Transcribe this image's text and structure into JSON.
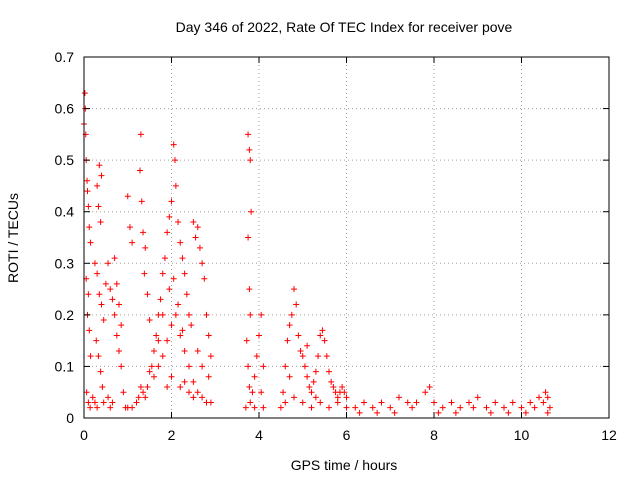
{
  "chart_data": {
    "type": "scatter",
    "title": "Day 346 of 2022, Rate Of TEC Index for receiver pove",
    "xlabel": "GPS time / hours",
    "ylabel": "ROTI / TECUs",
    "xlim": [
      0,
      12
    ],
    "ylim": [
      0,
      0.7
    ],
    "xticks": [
      0,
      2,
      4,
      6,
      8,
      10,
      12
    ],
    "yticks": [
      0,
      0.1,
      0.2,
      0.3,
      0.4,
      0.5,
      0.6,
      0.7
    ],
    "xtick_labels": [
      "0",
      "2",
      "4",
      "6",
      "8",
      "10",
      "12"
    ],
    "ytick_labels": [
      "0",
      "0.1",
      "0.2",
      "0.3",
      "0.4",
      "0.5",
      "0.6",
      "0.7"
    ],
    "grid": true,
    "marker": "+",
    "color": "#ff0000",
    "series": [
      {
        "points": [
          [
            0.0,
            0.57
          ],
          [
            0.02,
            0.63
          ],
          [
            0.03,
            0.6
          ],
          [
            0.04,
            0.55
          ],
          [
            0.05,
            0.5
          ],
          [
            0.07,
            0.46
          ],
          [
            0.08,
            0.44
          ],
          [
            0.1,
            0.41
          ],
          [
            0.12,
            0.37
          ],
          [
            0.15,
            0.34
          ],
          [
            0.05,
            0.27
          ],
          [
            0.1,
            0.24
          ],
          [
            0.08,
            0.2
          ],
          [
            0.12,
            0.17
          ],
          [
            0.15,
            0.12
          ],
          [
            0.06,
            0.05
          ],
          [
            0.1,
            0.03
          ],
          [
            0.14,
            0.02
          ],
          [
            0.2,
            0.04
          ],
          [
            0.25,
            0.03
          ],
          [
            0.3,
            0.45
          ],
          [
            0.35,
            0.49
          ],
          [
            0.4,
            0.47
          ],
          [
            0.33,
            0.41
          ],
          [
            0.38,
            0.38
          ],
          [
            0.25,
            0.3
          ],
          [
            0.3,
            0.28
          ],
          [
            0.35,
            0.24
          ],
          [
            0.4,
            0.22
          ],
          [
            0.45,
            0.19
          ],
          [
            0.28,
            0.15
          ],
          [
            0.33,
            0.12
          ],
          [
            0.38,
            0.09
          ],
          [
            0.42,
            0.06
          ],
          [
            0.3,
            0.02
          ],
          [
            0.45,
            0.03
          ],
          [
            0.5,
            0.26
          ],
          [
            0.55,
            0.3
          ],
          [
            0.6,
            0.25
          ],
          [
            0.65,
            0.23
          ],
          [
            0.7,
            0.2
          ],
          [
            0.75,
            0.16
          ],
          [
            0.8,
            0.13
          ],
          [
            0.85,
            0.1
          ],
          [
            0.9,
            0.05
          ],
          [
            0.95,
            0.02
          ],
          [
            0.55,
            0.04
          ],
          [
            0.65,
            0.03
          ],
          [
            0.7,
            0.31
          ],
          [
            0.75,
            0.26
          ],
          [
            0.8,
            0.22
          ],
          [
            0.85,
            0.18
          ],
          [
            0.6,
            0.02
          ],
          [
            1.0,
            0.43
          ],
          [
            1.05,
            0.37
          ],
          [
            1.1,
            0.34
          ],
          [
            1.0,
            0.02
          ],
          [
            1.1,
            0.02
          ],
          [
            1.2,
            0.03
          ],
          [
            1.25,
            0.04
          ],
          [
            1.3,
            0.55
          ],
          [
            1.28,
            0.48
          ],
          [
            1.32,
            0.42
          ],
          [
            1.35,
            0.36
          ],
          [
            1.4,
            0.33
          ],
          [
            1.38,
            0.28
          ],
          [
            1.45,
            0.24
          ],
          [
            1.5,
            0.19
          ],
          [
            1.3,
            0.06
          ],
          [
            1.35,
            0.05
          ],
          [
            1.4,
            0.04
          ],
          [
            1.45,
            0.06
          ],
          [
            1.5,
            0.09
          ],
          [
            1.55,
            0.1
          ],
          [
            1.6,
            0.13
          ],
          [
            1.65,
            0.16
          ],
          [
            1.7,
            0.2
          ],
          [
            1.75,
            0.23
          ],
          [
            1.8,
            0.28
          ],
          [
            1.85,
            0.31
          ],
          [
            1.9,
            0.36
          ],
          [
            1.95,
            0.39
          ],
          [
            2.0,
            0.42
          ],
          [
            2.05,
            0.53
          ],
          [
            2.08,
            0.5
          ],
          [
            2.1,
            0.45
          ],
          [
            2.15,
            0.38
          ],
          [
            2.2,
            0.34
          ],
          [
            2.25,
            0.31
          ],
          [
            2.3,
            0.28
          ],
          [
            2.35,
            0.24
          ],
          [
            2.4,
            0.2
          ],
          [
            2.45,
            0.18
          ],
          [
            1.6,
            0.08
          ],
          [
            1.7,
            0.1
          ],
          [
            1.8,
            0.12
          ],
          [
            1.9,
            0.15
          ],
          [
            2.0,
            0.18
          ],
          [
            2.1,
            0.2
          ],
          [
            2.2,
            0.16
          ],
          [
            2.3,
            0.13
          ],
          [
            2.4,
            0.1
          ],
          [
            2.5,
            0.07
          ],
          [
            2.6,
            0.05
          ],
          [
            2.7,
            0.04
          ],
          [
            2.8,
            0.03
          ],
          [
            2.9,
            0.03
          ],
          [
            1.7,
            0.15
          ],
          [
            1.8,
            0.2
          ],
          [
            1.95,
            0.25
          ],
          [
            2.05,
            0.27
          ],
          [
            2.15,
            0.22
          ],
          [
            2.25,
            0.17
          ],
          [
            2.5,
            0.38
          ],
          [
            2.55,
            0.35
          ],
          [
            2.6,
            0.37
          ],
          [
            2.65,
            0.33
          ],
          [
            2.7,
            0.3
          ],
          [
            2.75,
            0.27
          ],
          [
            2.8,
            0.2
          ],
          [
            2.85,
            0.16
          ],
          [
            2.9,
            0.12
          ],
          [
            2.85,
            0.08
          ],
          [
            2.6,
            0.13
          ],
          [
            2.7,
            0.1
          ],
          [
            2.3,
            0.07
          ],
          [
            2.4,
            0.05
          ],
          [
            2.5,
            0.04
          ],
          [
            2.2,
            0.06
          ],
          [
            2.0,
            0.08
          ],
          [
            1.9,
            0.06
          ],
          [
            3.75,
            0.55
          ],
          [
            3.78,
            0.52
          ],
          [
            3.8,
            0.5
          ],
          [
            3.82,
            0.4
          ],
          [
            3.75,
            0.35
          ],
          [
            3.78,
            0.25
          ],
          [
            3.8,
            0.2
          ],
          [
            3.72,
            0.15
          ],
          [
            3.75,
            0.1
          ],
          [
            3.78,
            0.06
          ],
          [
            3.8,
            0.03
          ],
          [
            3.85,
            0.05
          ],
          [
            3.9,
            0.08
          ],
          [
            3.95,
            0.12
          ],
          [
            4.0,
            0.16
          ],
          [
            4.05,
            0.2
          ],
          [
            4.1,
            0.1
          ],
          [
            4.05,
            0.05
          ],
          [
            4.1,
            0.02
          ],
          [
            3.9,
            0.02
          ],
          [
            3.7,
            0.02
          ],
          [
            4.5,
            0.02
          ],
          [
            4.55,
            0.05
          ],
          [
            4.6,
            0.1
          ],
          [
            4.65,
            0.15
          ],
          [
            4.7,
            0.18
          ],
          [
            4.75,
            0.2
          ],
          [
            4.8,
            0.25
          ],
          [
            4.85,
            0.22
          ],
          [
            4.9,
            0.16
          ],
          [
            4.95,
            0.13
          ],
          [
            5.0,
            0.12
          ],
          [
            5.05,
            0.1
          ],
          [
            5.1,
            0.08
          ],
          [
            5.15,
            0.06
          ],
          [
            5.2,
            0.05
          ],
          [
            5.25,
            0.07
          ],
          [
            5.3,
            0.09
          ],
          [
            5.35,
            0.12
          ],
          [
            5.4,
            0.16
          ],
          [
            5.45,
            0.17
          ],
          [
            5.5,
            0.15
          ],
          [
            5.55,
            0.12
          ],
          [
            5.6,
            0.09
          ],
          [
            5.65,
            0.07
          ],
          [
            5.7,
            0.06
          ],
          [
            5.75,
            0.05
          ],
          [
            5.8,
            0.04
          ],
          [
            5.85,
            0.05
          ],
          [
            5.9,
            0.06
          ],
          [
            5.95,
            0.05
          ],
          [
            6.0,
            0.04
          ],
          [
            4.6,
            0.03
          ],
          [
            4.8,
            0.04
          ],
          [
            5.0,
            0.03
          ],
          [
            5.2,
            0.02
          ],
          [
            5.4,
            0.03
          ],
          [
            5.6,
            0.02
          ],
          [
            5.8,
            0.03
          ],
          [
            6.0,
            0.02
          ],
          [
            4.7,
            0.08
          ],
          [
            5.1,
            0.14
          ],
          [
            5.3,
            0.04
          ],
          [
            6.2,
            0.02
          ],
          [
            6.4,
            0.03
          ],
          [
            6.6,
            0.02
          ],
          [
            6.8,
            0.03
          ],
          [
            7.0,
            0.02
          ],
          [
            7.2,
            0.04
          ],
          [
            7.4,
            0.03
          ],
          [
            7.6,
            0.03
          ],
          [
            7.8,
            0.05
          ],
          [
            7.9,
            0.06
          ],
          [
            8.0,
            0.03
          ],
          [
            8.2,
            0.02
          ],
          [
            8.4,
            0.03
          ],
          [
            8.6,
            0.02
          ],
          [
            8.8,
            0.03
          ],
          [
            9.0,
            0.04
          ],
          [
            9.2,
            0.02
          ],
          [
            9.4,
            0.03
          ],
          [
            9.6,
            0.02
          ],
          [
            9.8,
            0.03
          ],
          [
            10.0,
            0.02
          ],
          [
            10.2,
            0.03
          ],
          [
            10.3,
            0.02
          ],
          [
            10.4,
            0.04
          ],
          [
            10.5,
            0.03
          ],
          [
            10.6,
            0.04
          ],
          [
            10.65,
            0.02
          ],
          [
            6.3,
            0.01
          ],
          [
            6.7,
            0.01
          ],
          [
            7.1,
            0.01
          ],
          [
            7.5,
            0.02
          ],
          [
            8.1,
            0.01
          ],
          [
            8.5,
            0.01
          ],
          [
            8.9,
            0.02
          ],
          [
            9.3,
            0.01
          ],
          [
            9.7,
            0.01
          ],
          [
            10.1,
            0.01
          ],
          [
            10.55,
            0.05
          ],
          [
            10.6,
            0.01
          ]
        ]
      }
    ]
  }
}
